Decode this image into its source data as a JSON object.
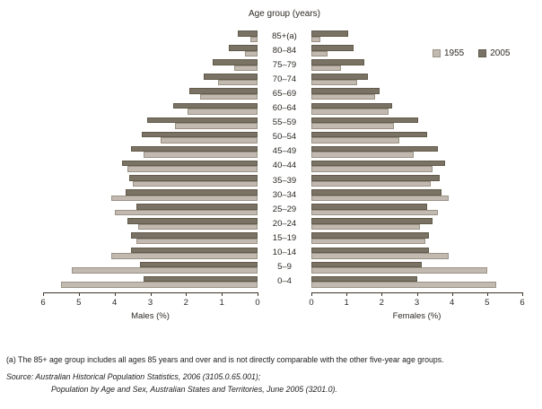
{
  "chart_data": {
    "type": "bar",
    "variant": "population-pyramid",
    "title": "Age group (years)",
    "unit": "%",
    "xlim": [
      0,
      6
    ],
    "ticks": [
      0,
      1,
      2,
      3,
      4,
      5,
      6
    ],
    "left_axis_label": "Males (%)",
    "right_axis_label": "Females (%)",
    "legend": [
      {
        "label": "1955",
        "color": "#c2bab0"
      },
      {
        "label": "2005",
        "color": "#7a7264"
      }
    ],
    "age_groups_top_to_bottom": [
      "85+(a)",
      "80–84",
      "75–79",
      "70–74",
      "65–69",
      "60–64",
      "55–59",
      "50–54",
      "45–49",
      "40–44",
      "35–39",
      "30–34",
      "25–29",
      "20–24",
      "15–19",
      "10–14",
      "5–9",
      "0–4"
    ],
    "males": {
      "1955": [
        0.2,
        0.35,
        0.65,
        1.1,
        1.6,
        1.95,
        2.3,
        2.7,
        3.2,
        3.65,
        3.5,
        4.1,
        4.0,
        3.35,
        3.4,
        4.1,
        5.2,
        5.5
      ],
      "2005": [
        0.55,
        0.8,
        1.25,
        1.5,
        1.9,
        2.35,
        3.1,
        3.25,
        3.55,
        3.8,
        3.6,
        3.7,
        3.4,
        3.65,
        3.55,
        3.55,
        3.3,
        3.2
      ]
    },
    "females": {
      "1955": [
        0.25,
        0.45,
        0.85,
        1.3,
        1.8,
        2.2,
        2.35,
        2.5,
        2.9,
        3.45,
        3.4,
        3.9,
        3.6,
        3.1,
        3.25,
        3.9,
        5.0,
        5.25
      ],
      "2005": [
        1.05,
        1.2,
        1.5,
        1.6,
        1.95,
        2.3,
        3.05,
        3.3,
        3.6,
        3.8,
        3.65,
        3.7,
        3.3,
        3.45,
        3.35,
        3.35,
        3.15,
        3.0
      ]
    }
  },
  "footer": {
    "footnote": "(a) The 85+ age group includes all ages 85 years and over and is not directly comparable with the other five-year age groups.",
    "source_line1": "Source: Australian Historical Population Statistics, 2006 (3105.0.65.001);",
    "source_line2": "Population by Age and Sex, Australian States and Territories, June 2005 (3201.0)."
  }
}
